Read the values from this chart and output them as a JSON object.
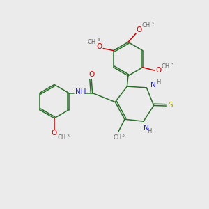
{
  "background_color": "#ebebeb",
  "bond_color": "#2a6e2a",
  "n_color": "#2222cc",
  "o_color": "#cc0000",
  "s_color": "#aaaa00",
  "h_color": "#666666",
  "figsize": [
    3.0,
    3.0
  ],
  "dpi": 100,
  "xlim": [
    0,
    10
  ],
  "ylim": [
    0,
    10
  ]
}
